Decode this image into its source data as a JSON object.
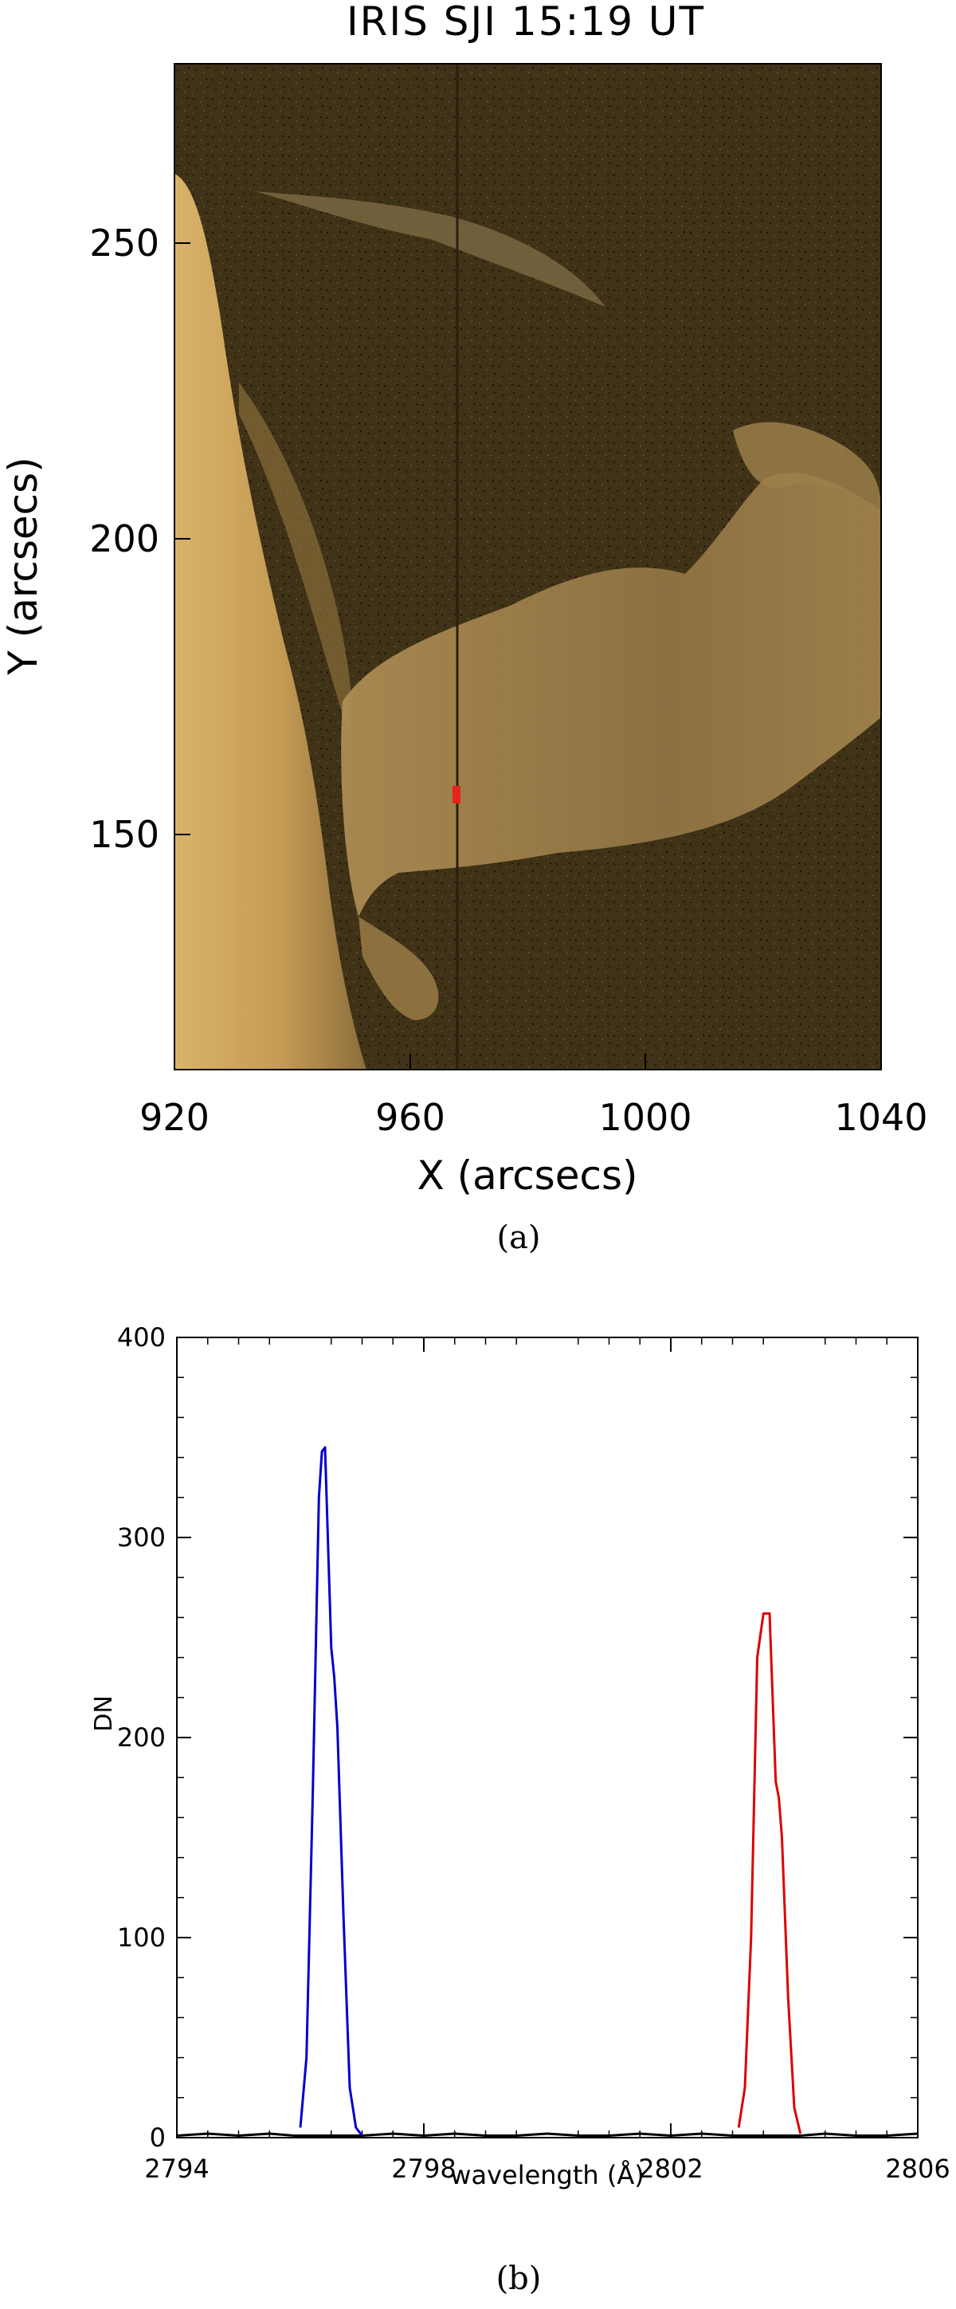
{
  "panel_a": {
    "title": "IRIS SJI 15:19 UT",
    "xlabel": "X (arcsecs)",
    "ylabel": "Y (arcsecs)",
    "xticks": [
      "920",
      "960",
      "1000",
      "1040"
    ],
    "yticks": [
      "150",
      "200",
      "250"
    ],
    "caption": "(a)",
    "image_palette": {
      "background": "#3f3217",
      "limb": "#c9a25a",
      "prominence": "#a88a52",
      "marker": "#e8231b"
    }
  },
  "panel_b": {
    "caption": "(b)"
  },
  "chart_data": [
    {
      "type": "image",
      "title": "IRIS SJI 15:19 UT",
      "xlabel": "X (arcsecs)",
      "ylabel": "Y (arcsecs)",
      "xlim": [
        920,
        1040
      ],
      "ylim": [
        110,
        280
      ],
      "xticks": [
        920,
        960,
        1000,
        1040
      ],
      "yticks": [
        150,
        200,
        250
      ],
      "marker": {
        "x": 968,
        "y": 156,
        "color": "#e8231b"
      }
    },
    {
      "type": "line",
      "title": "",
      "xlabel": "wavelength (Å)",
      "ylabel": "DN",
      "xlim": [
        2794,
        2806
      ],
      "ylim": [
        0,
        400
      ],
      "xticks": [
        2794,
        2798,
        2802,
        2806
      ],
      "yticks": [
        0,
        100,
        200,
        300,
        400
      ],
      "series": [
        {
          "color": "#000000",
          "x": [
            2794.0,
            2794.5,
            2795.0,
            2795.5,
            2795.9,
            2796.0,
            2797.0,
            2797.5,
            2798.0,
            2798.5,
            2799.0,
            2799.5,
            2800.0,
            2800.5,
            2801.0,
            2801.5,
            2802.0,
            2802.5,
            2803.0,
            2803.1,
            2804.1,
            2804.5,
            2805.0,
            2805.5,
            2806.0
          ],
          "y": [
            1,
            2,
            1,
            2,
            1,
            1,
            1,
            2,
            1,
            2,
            1,
            1,
            2,
            1,
            1,
            2,
            1,
            2,
            1,
            1,
            1,
            2,
            1,
            1,
            2
          ]
        },
        {
          "color": "#0000cc",
          "x": [
            2796.0,
            2796.1,
            2796.2,
            2796.3,
            2796.35,
            2796.4,
            2796.5,
            2796.55,
            2796.6,
            2796.7,
            2796.8,
            2796.9,
            2797.0
          ],
          "y": [
            5,
            40,
            170,
            320,
            343,
            345,
            245,
            230,
            205,
            110,
            25,
            5,
            1
          ]
        },
        {
          "color": "#dd0000",
          "x": [
            2803.1,
            2803.2,
            2803.3,
            2803.4,
            2803.5,
            2803.6,
            2803.7,
            2803.75,
            2803.8,
            2803.9,
            2804.0,
            2804.1
          ],
          "y": [
            5,
            25,
            100,
            240,
            262,
            262,
            178,
            170,
            150,
            70,
            15,
            2
          ]
        }
      ]
    }
  ]
}
